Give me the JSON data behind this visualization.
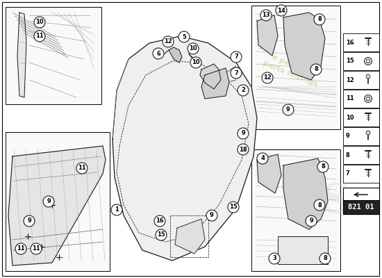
{
  "background_color": "#ffffff",
  "part_number": "821 01",
  "watermark_color": "#c8b040",
  "legend_items": [
    {
      "num": "16"
    },
    {
      "num": "15"
    },
    {
      "num": "12"
    },
    {
      "num": "11"
    },
    {
      "num": "10"
    },
    {
      "num": "9"
    },
    {
      "num": "8"
    },
    {
      "num": "7"
    }
  ],
  "dark_box_bg": "#222222",
  "dark_box_text": "#ffffff",
  "line_color": "#1a1a1a",
  "panel_border": "#000000",
  "inset_bg": "#ffffff",
  "circle_bg": "#ffffff"
}
